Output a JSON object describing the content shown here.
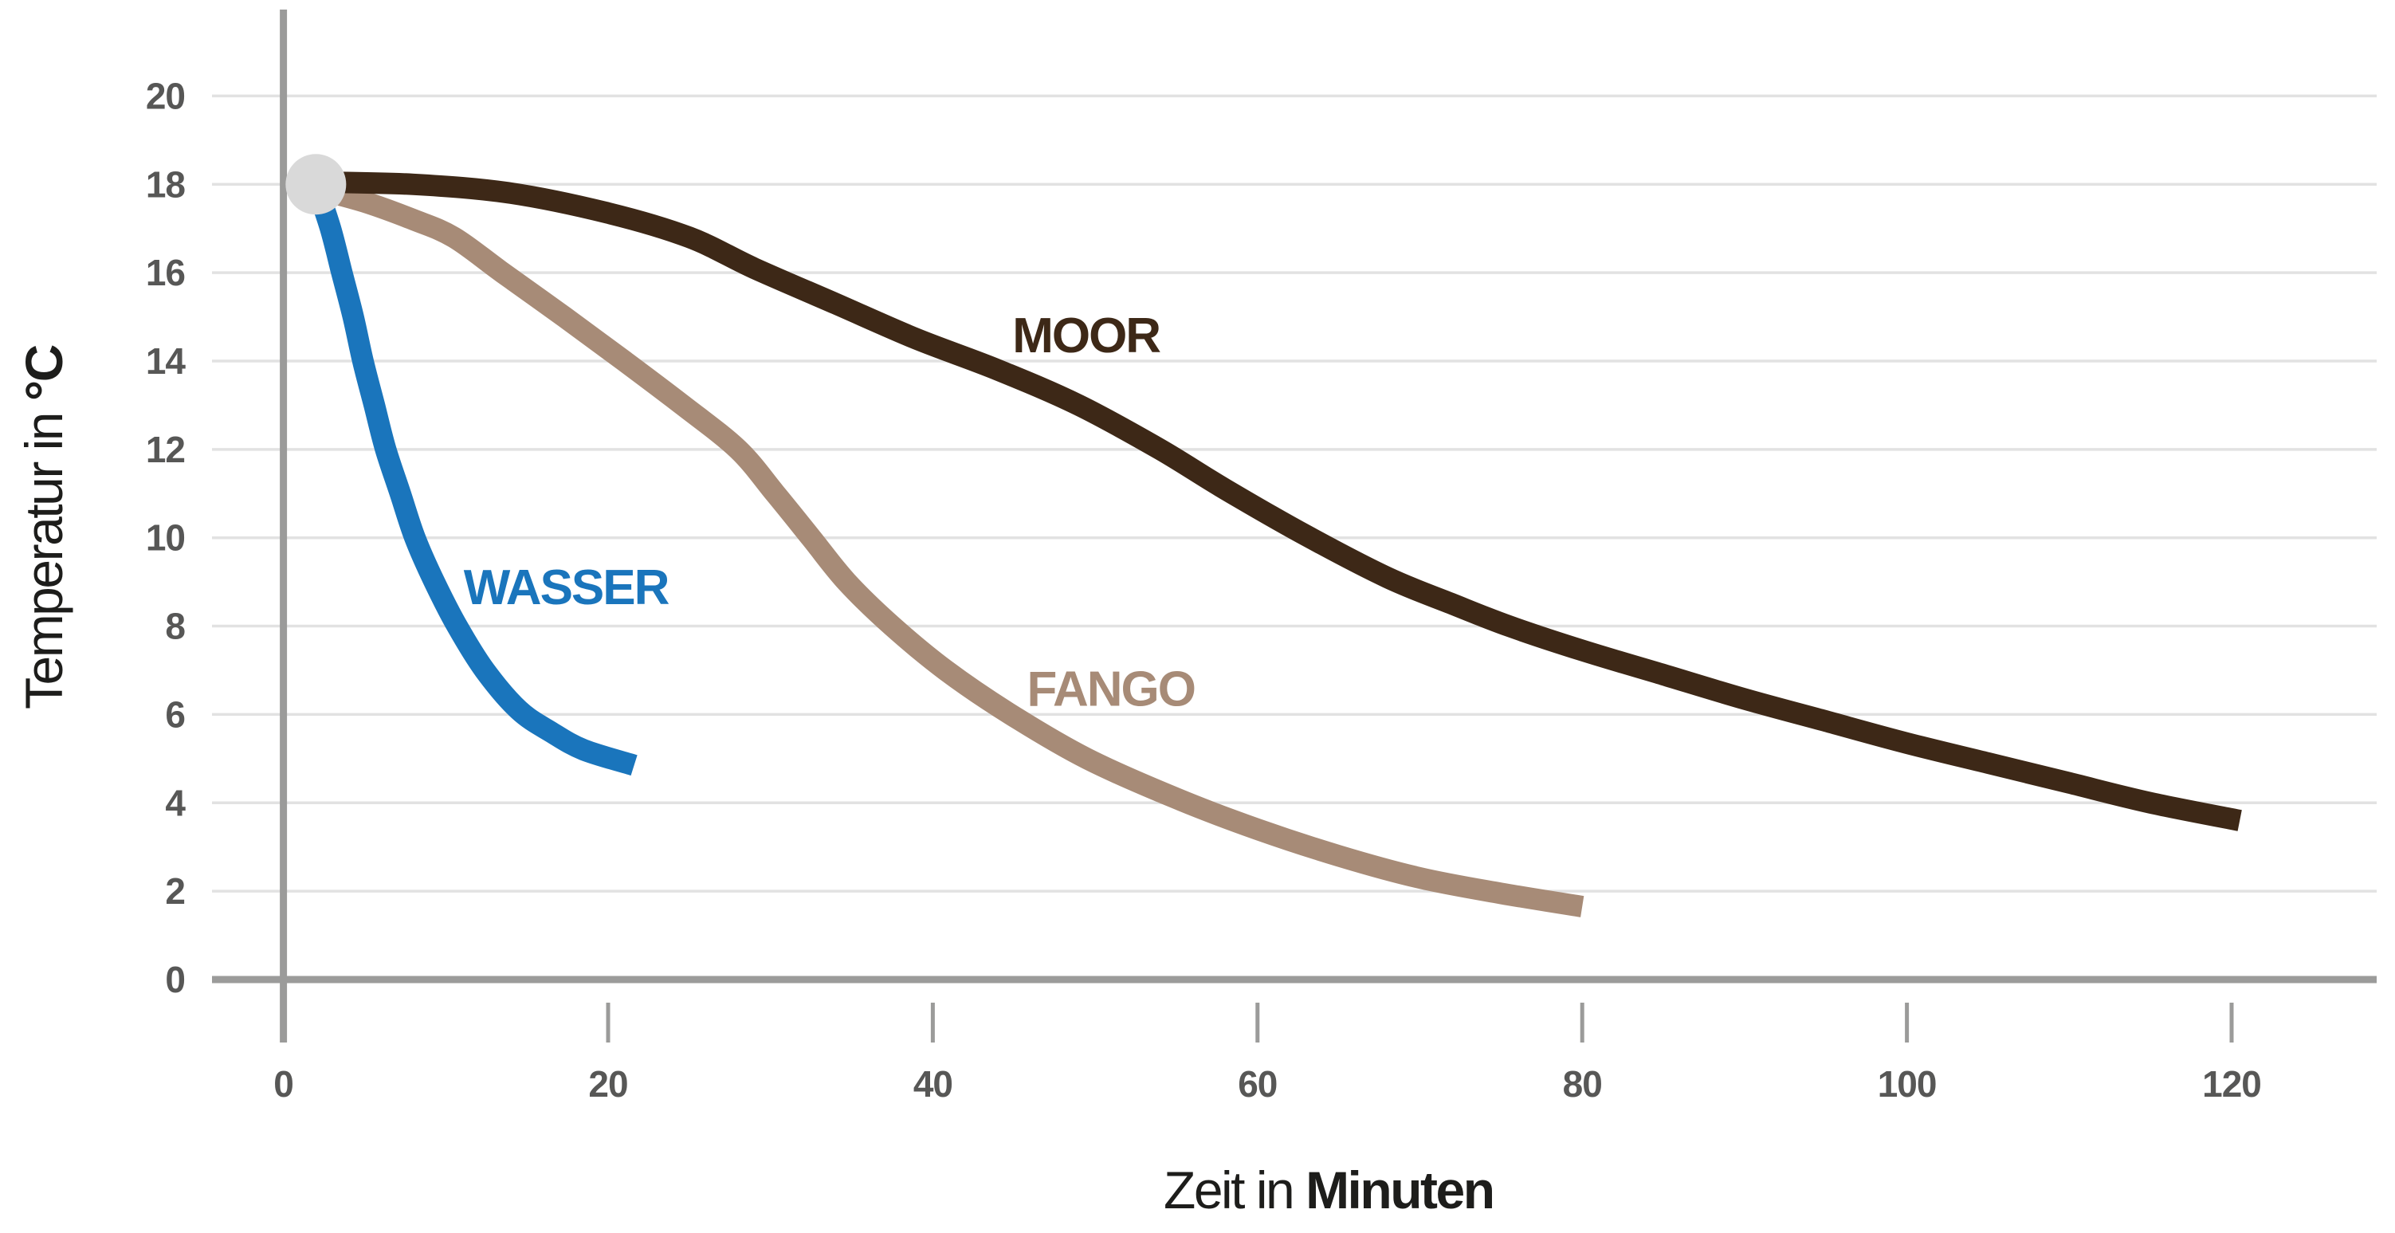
{
  "chart_data": {
    "type": "line",
    "title": "",
    "x_axis": {
      "label_regular": "Zeit in ",
      "label_bold": "Minuten",
      "ticks": [
        0,
        20,
        40,
        60,
        80,
        100,
        120
      ],
      "range": [
        0,
        129
      ],
      "unit": "Minuten"
    },
    "y_axis": {
      "label_regular": "Temperatur in ",
      "label_bold": "°C",
      "ticks": [
        0,
        2,
        4,
        6,
        8,
        10,
        12,
        14,
        16,
        18,
        20
      ],
      "range": [
        0,
        22
      ],
      "unit": "°C"
    },
    "grid": "horizontal-only",
    "legend_position": "inline-labels",
    "start_marker": {
      "x": 2,
      "y": 18,
      "color": "#d9d9d9",
      "shape": "circle"
    },
    "series": [
      {
        "name": "WASSER",
        "color": "#1a75bc",
        "label_pos": {
          "x": 11.1,
          "y": 8.5
        },
        "points": [
          [
            2,
            18
          ],
          [
            2.9,
            17
          ],
          [
            3.6,
            16
          ],
          [
            4.3,
            15
          ],
          [
            4.9,
            14
          ],
          [
            5.6,
            13
          ],
          [
            6.3,
            12
          ],
          [
            7.2,
            11
          ],
          [
            8.1,
            10
          ],
          [
            9.3,
            9
          ],
          [
            10.7,
            8
          ],
          [
            12.4,
            7
          ],
          [
            14.5,
            6.1
          ],
          [
            16.5,
            5.6
          ],
          [
            18.5,
            5.2
          ],
          [
            21.6,
            4.85
          ]
        ]
      },
      {
        "name": "FANGO",
        "color": "#a78b77",
        "label_pos": {
          "x": 45.8,
          "y": 6.2
        },
        "points": [
          [
            2,
            17.9
          ],
          [
            5,
            17.6
          ],
          [
            8,
            17.2
          ],
          [
            10.5,
            16.8
          ],
          [
            13.5,
            16
          ],
          [
            17.3,
            15
          ],
          [
            21,
            14
          ],
          [
            24.6,
            13
          ],
          [
            28,
            12
          ],
          [
            30.3,
            11
          ],
          [
            32.5,
            10
          ],
          [
            34.7,
            9
          ],
          [
            37.5,
            8
          ],
          [
            40.8,
            7
          ],
          [
            44.8,
            6
          ],
          [
            49.5,
            5
          ],
          [
            55,
            4.1
          ],
          [
            60,
            3.4
          ],
          [
            65,
            2.8
          ],
          [
            70,
            2.3
          ],
          [
            75,
            1.95
          ],
          [
            80,
            1.65
          ]
        ]
      },
      {
        "name": "MOOR",
        "color": "#3d2817",
        "label_pos": {
          "x": 44.9,
          "y": 14.2
        },
        "points": [
          [
            2,
            18.05
          ],
          [
            8,
            18.0
          ],
          [
            14,
            17.8
          ],
          [
            20,
            17.35
          ],
          [
            25,
            16.8
          ],
          [
            29,
            16.1
          ],
          [
            34,
            15.3
          ],
          [
            39,
            14.5
          ],
          [
            44,
            13.8
          ],
          [
            49,
            13.0
          ],
          [
            54,
            12.0
          ],
          [
            58,
            11.1
          ],
          [
            63,
            10.05
          ],
          [
            68,
            9.1
          ],
          [
            72,
            8.5
          ],
          [
            75.5,
            8.0
          ],
          [
            80,
            7.45
          ],
          [
            85,
            6.9
          ],
          [
            90,
            6.35
          ],
          [
            95,
            5.85
          ],
          [
            100,
            5.35
          ],
          [
            105,
            4.9
          ],
          [
            110,
            4.45
          ],
          [
            115,
            4.0
          ],
          [
            120.5,
            3.6
          ]
        ]
      }
    ],
    "colors": {
      "grid": "#e2e2e2",
      "axis": "#9b9b9a",
      "tick_label": "#575756",
      "axis_title": "#1d1d1b",
      "background": "#ffffff"
    }
  }
}
